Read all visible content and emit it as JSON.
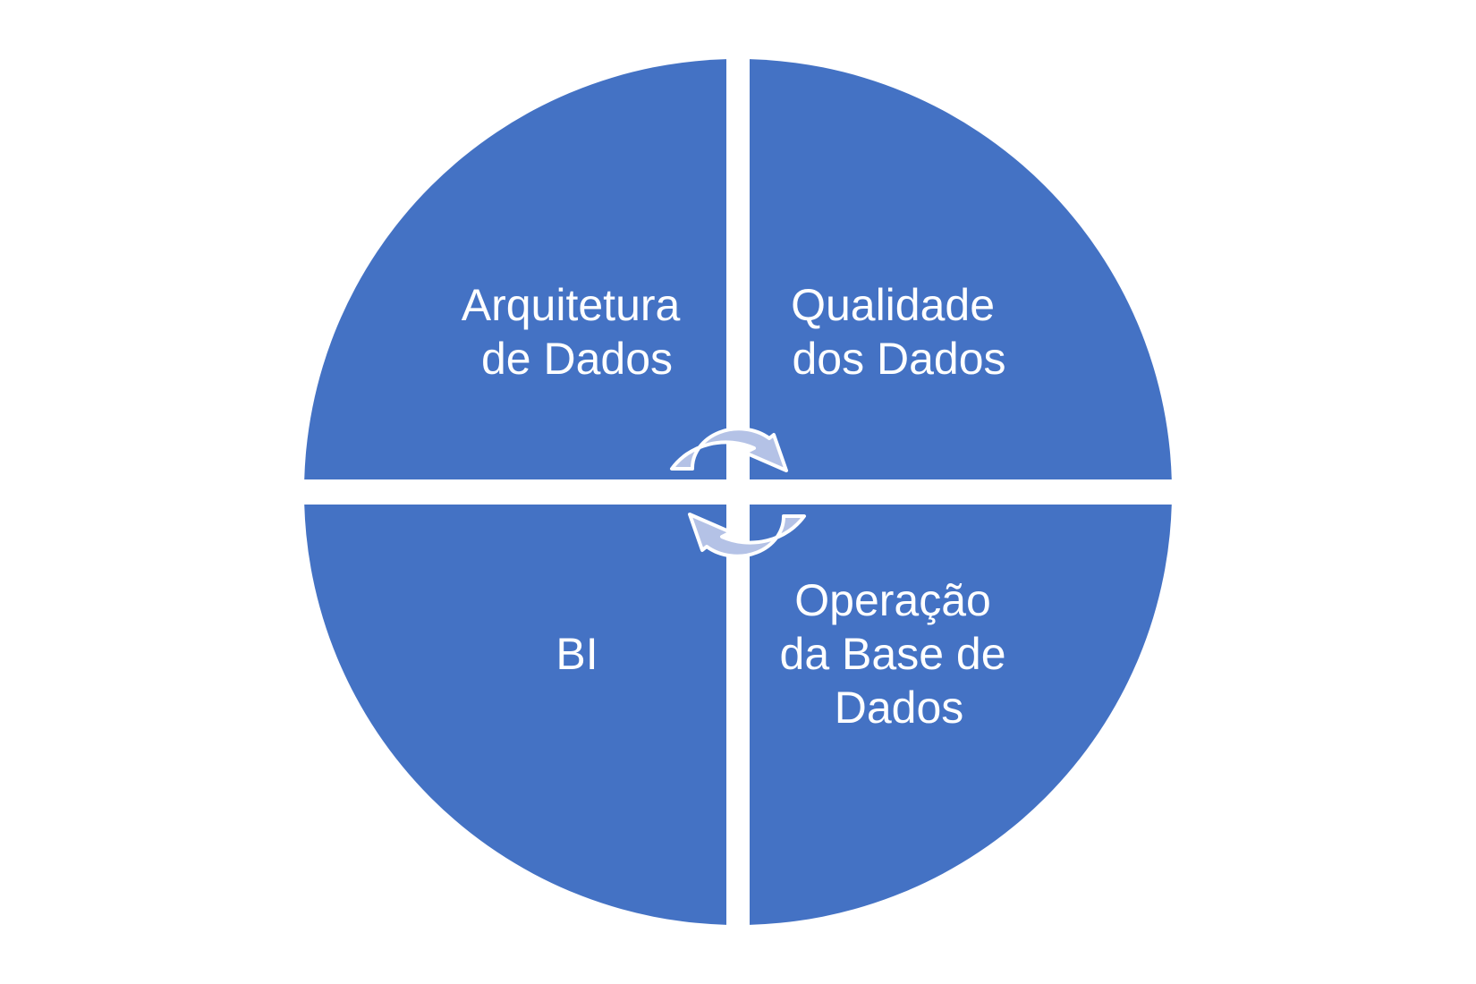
{
  "diagram": {
    "quadrants": [
      {
        "id": "top-left",
        "lines": [
          "Arquitetura",
          "de Dados"
        ]
      },
      {
        "id": "top-right",
        "lines": [
          "Qualidade",
          "dos Dados"
        ]
      },
      {
        "id": "bottom-left",
        "lines": [
          "BI"
        ]
      },
      {
        "id": "bottom-right",
        "lines": [
          "Operação",
          "da Base de",
          "Dados"
        ]
      }
    ],
    "colors": {
      "quadrant_fill": "#4472C4",
      "label_text": "#FFFFFF",
      "arrow_fill": "#B4C2E6",
      "arrow_stroke": "#FFFFFF",
      "background": "#FFFFFF"
    },
    "cycle_arrows": [
      "clockwise-arrow-top",
      "clockwise-arrow-bottom"
    ]
  }
}
